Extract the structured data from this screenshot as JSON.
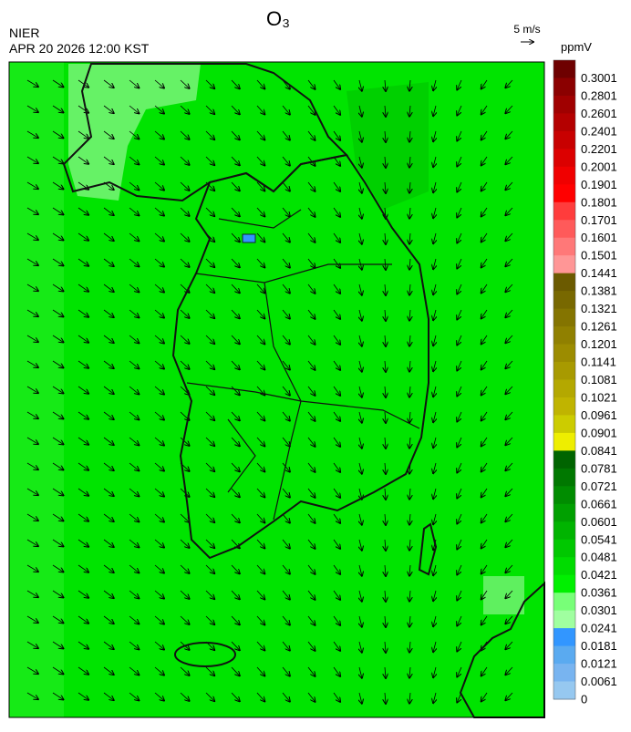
{
  "header": {
    "title": "O₃",
    "agency": "NIER",
    "datetime": "APR 20 2026 12:00 KST",
    "wind_scale": "5 m/s"
  },
  "legend": {
    "unit": "ppmV",
    "labels": [
      "0.3001",
      "0.2801",
      "0.2601",
      "0.2401",
      "0.2201",
      "0.2001",
      "0.1901",
      "0.1801",
      "0.1701",
      "0.1601",
      "0.1501",
      "0.1441",
      "0.1381",
      "0.1321",
      "0.1261",
      "0.1201",
      "0.1141",
      "0.1081",
      "0.1021",
      "0.0961",
      "0.0901",
      "0.0841",
      "0.0781",
      "0.0721",
      "0.0661",
      "0.0601",
      "0.0541",
      "0.0481",
      "0.0421",
      "0.0361",
      "0.0301",
      "0.0241",
      "0.0181",
      "0.0121",
      "0.0061",
      "0"
    ],
    "colors": [
      "#6e0000",
      "#8b0000",
      "#a00000",
      "#b40000",
      "#c80000",
      "#dc0000",
      "#f00000",
      "#ff0000",
      "#ff3c3c",
      "#ff5a5a",
      "#ff7878",
      "#ff9696",
      "#6b5a00",
      "#786800",
      "#847400",
      "#908000",
      "#9c8c00",
      "#a89a00",
      "#b4a800",
      "#c0b400",
      "#cccc00",
      "#eeee00",
      "#006400",
      "#007800",
      "#008c00",
      "#00a000",
      "#00b400",
      "#00c800",
      "#00dc00",
      "#00f000",
      "#78ff78",
      "#a0ffa0",
      "#3296ff",
      "#5aaaf0",
      "#78b4f0",
      "#96c8f0"
    ]
  }
}
